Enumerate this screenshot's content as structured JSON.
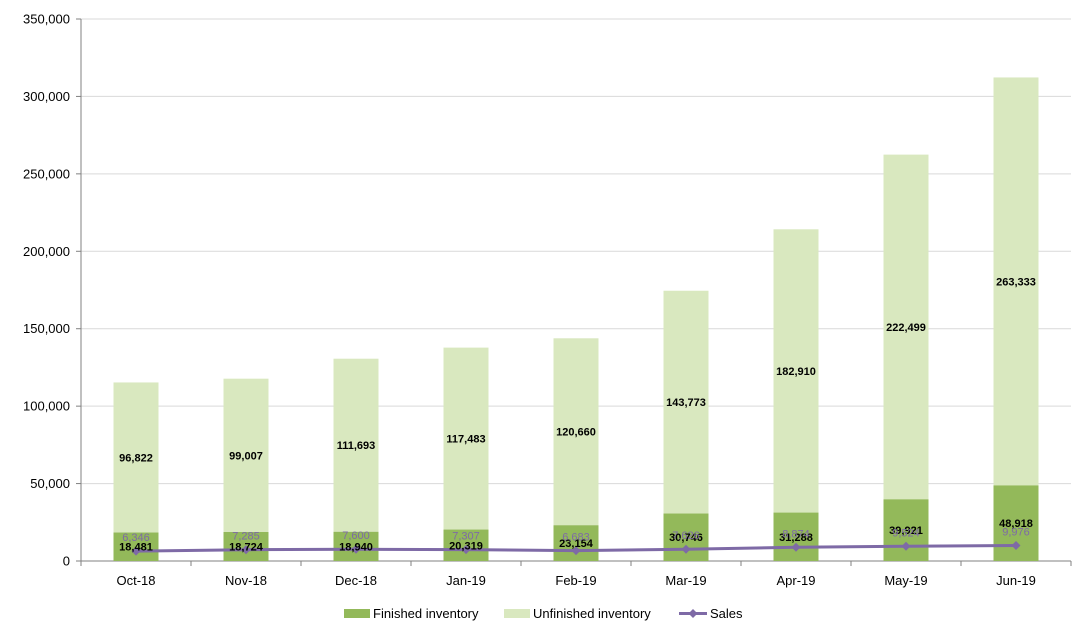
{
  "chart_data": {
    "type": "bar",
    "stacked": true,
    "categories": [
      "Oct-18",
      "Nov-18",
      "Dec-18",
      "Jan-19",
      "Feb-19",
      "Mar-19",
      "Apr-19",
      "May-19",
      "Jun-19"
    ],
    "series": [
      {
        "name": "Finished inventory",
        "kind": "bar",
        "color": "#93b95a",
        "values": [
          18481,
          18724,
          18940,
          20319,
          23154,
          30746,
          31288,
          39921,
          48918
        ]
      },
      {
        "name": "Unfinished inventory",
        "kind": "bar",
        "color": "#d9e8bf",
        "values": [
          96822,
          99007,
          111693,
          117483,
          120660,
          143773,
          182910,
          222499,
          263333
        ]
      },
      {
        "name": "Sales",
        "kind": "line",
        "color": "#7e6aa6",
        "values": [
          6346,
          7285,
          7600,
          7307,
          6683,
          7626,
          8874,
          9524,
          9976
        ]
      }
    ],
    "y_ticks": [
      "0",
      "50,000",
      "100,000",
      "150,000",
      "200,000",
      "250,000",
      "300,000",
      "350,000"
    ],
    "ylim": [
      0,
      350000
    ],
    "grid": true,
    "legend_position": "bottom"
  }
}
